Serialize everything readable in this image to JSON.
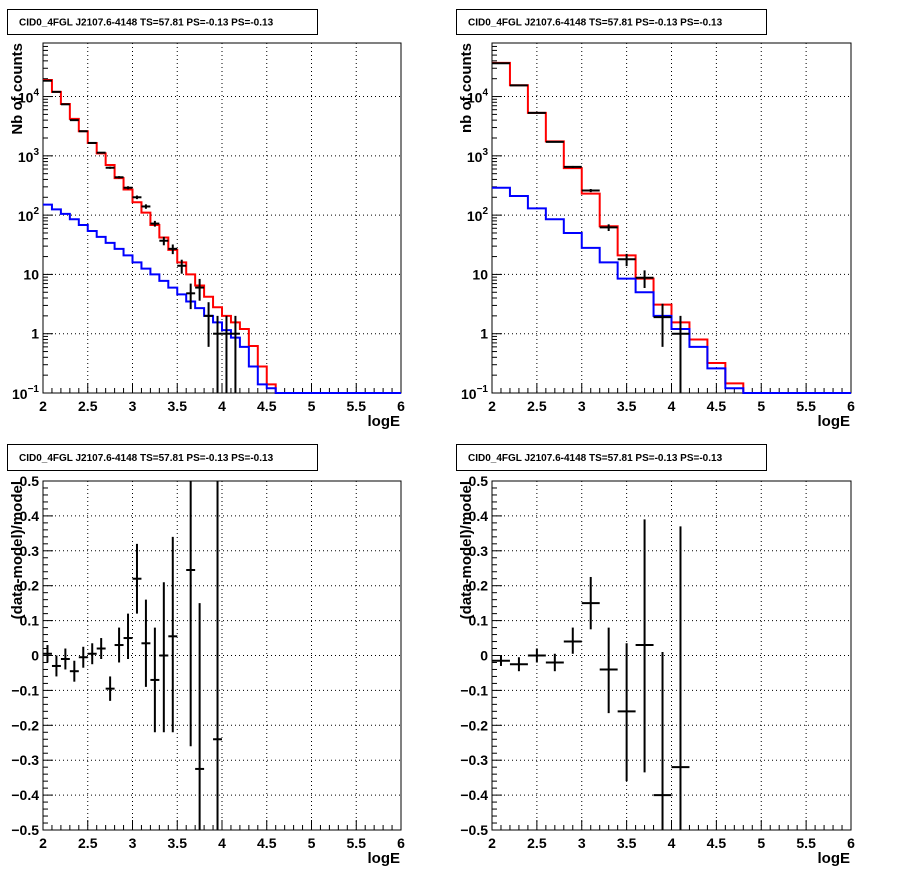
{
  "colors": {
    "data": "#000000",
    "total": "#ff0000",
    "background": "#0000ff",
    "frame": "#000000"
  },
  "chart_data": [
    {
      "type": "histogram",
      "title": "CID0_4FGL J2107.6-4148 TS=57.81 PS=-0.13 PS=-0.13",
      "xlabel": "logE",
      "ylabel": "Nb of counts",
      "xlim": [
        2,
        6
      ],
      "ylim": [
        0.1,
        80000
      ],
      "log_y": true,
      "grid": true,
      "xticks": [
        2,
        2.5,
        3,
        3.5,
        4,
        4.5,
        5,
        5.5,
        6
      ],
      "yticks": [
        {
          "value": 0.1,
          "base": "10",
          "exp": "−1"
        },
        {
          "value": 1,
          "label": "1"
        },
        {
          "value": 10,
          "label": "10"
        },
        {
          "value": 100,
          "base": "10",
          "exp": "2"
        },
        {
          "value": 1000,
          "base": "10",
          "exp": "3"
        },
        {
          "value": 10000,
          "base": "10",
          "exp": "4"
        }
      ],
      "series": [
        {
          "role": "total",
          "color": "#ff0000",
          "step": true,
          "edges": [
            2,
            2.1,
            2.2,
            2.3,
            2.4,
            2.5,
            2.6,
            2.7,
            2.8,
            2.9,
            3,
            3.1,
            3.2,
            3.3,
            3.4,
            3.5,
            3.6,
            3.7,
            3.8,
            3.9,
            4,
            4.1,
            4.2,
            4.3,
            4.4,
            4.5,
            4.6,
            4.7,
            4.8,
            4.9,
            5,
            5.1,
            5.2,
            5.3,
            5.4,
            5.5,
            5.6,
            5.7,
            5.8,
            5.9,
            6
          ],
          "values": [
            19000,
            12000,
            7500,
            4200,
            2600,
            1650,
            1100,
            700,
            420,
            270,
            165,
            110,
            68,
            42,
            26,
            16,
            10,
            6.5,
            4.2,
            2.8,
            2.0,
            1.55,
            1.2,
            0.62,
            0.28,
            0.14,
            0.1,
            0.1,
            0.1,
            0.1,
            0.1,
            0.1,
            0.1,
            0.1,
            0.1,
            0.1,
            0.1,
            0.1,
            0.1,
            0.1
          ]
        },
        {
          "role": "background",
          "color": "#0000ff",
          "step": true,
          "edges": [
            2,
            2.1,
            2.2,
            2.3,
            2.4,
            2.5,
            2.6,
            2.7,
            2.8,
            2.9,
            3,
            3.1,
            3.2,
            3.3,
            3.4,
            3.5,
            3.6,
            3.7,
            3.8,
            3.9,
            4,
            4.1,
            4.2,
            4.3,
            4.4,
            4.5,
            4.6,
            4.7,
            4.8,
            4.9,
            5,
            5.1,
            5.2,
            5.3,
            5.4,
            5.5,
            5.6,
            5.7,
            5.8,
            5.9,
            6
          ],
          "values": [
            150,
            125,
            105,
            85,
            68,
            54,
            43,
            34,
            27,
            21,
            16,
            12.5,
            10,
            7.8,
            6.0,
            4.6,
            3.5,
            2.7,
            2.0,
            1.55,
            1.15,
            0.86,
            0.6,
            0.28,
            0.14,
            0.12,
            0.1,
            0.1,
            0.1,
            0.1,
            0.1,
            0.1,
            0.1,
            0.1,
            0.1,
            0.1,
            0.1,
            0.1,
            0.1,
            0.1
          ]
        },
        {
          "role": "data",
          "color": "#000000",
          "points": [
            {
              "x": 2.05,
              "y": 18500,
              "xerr": 0.05,
              "ylo": 18300,
              "yhi": 18700
            },
            {
              "x": 2.15,
              "y": 12000,
              "xerr": 0.05,
              "ylo": 11850,
              "yhi": 12150
            },
            {
              "x": 2.25,
              "y": 7400,
              "xerr": 0.05,
              "ylo": 7300,
              "yhi": 7500
            },
            {
              "x": 2.35,
              "y": 4000,
              "xerr": 0.05,
              "ylo": 3930,
              "yhi": 4070
            },
            {
              "x": 2.45,
              "y": 2600,
              "xerr": 0.05,
              "ylo": 2550,
              "yhi": 2650
            },
            {
              "x": 2.55,
              "y": 1650,
              "xerr": 0.05,
              "ylo": 1610,
              "yhi": 1690
            },
            {
              "x": 2.65,
              "y": 1130,
              "xerr": 0.05,
              "ylo": 1100,
              "yhi": 1160
            },
            {
              "x": 2.75,
              "y": 630,
              "xerr": 0.05,
              "ylo": 605,
              "yhi": 655
            },
            {
              "x": 2.85,
              "y": 435,
              "xerr": 0.05,
              "ylo": 415,
              "yhi": 455
            },
            {
              "x": 2.95,
              "y": 290,
              "xerr": 0.05,
              "ylo": 273,
              "yhi": 307
            },
            {
              "x": 3.05,
              "y": 200,
              "xerr": 0.05,
              "ylo": 186,
              "yhi": 214
            },
            {
              "x": 3.15,
              "y": 140,
              "xerr": 0.05,
              "ylo": 128,
              "yhi": 152
            },
            {
              "x": 3.25,
              "y": 72,
              "xerr": 0.05,
              "ylo": 64,
              "yhi": 80
            },
            {
              "x": 3.35,
              "y": 37,
              "xerr": 0.05,
              "ylo": 31,
              "yhi": 43
            },
            {
              "x": 3.45,
              "y": 27,
              "xerr": 0.05,
              "ylo": 22,
              "yhi": 32
            },
            {
              "x": 3.55,
              "y": 14,
              "xerr": 0.05,
              "ylo": 10.3,
              "yhi": 17.7
            },
            {
              "x": 3.65,
              "y": 4.8,
              "xerr": 0.05,
              "ylo": 2.6,
              "yhi": 7.0
            },
            {
              "x": 3.75,
              "y": 6.0,
              "xerr": 0.05,
              "ylo": 3.6,
              "yhi": 8.4
            },
            {
              "x": 3.85,
              "y": 2.0,
              "xerr": 0.05,
              "ylo": 0.6,
              "yhi": 3.4
            },
            {
              "x": 3.95,
              "y": 1.0,
              "xerr": 0.05,
              "ylo": 0.1,
              "yhi": 2.0
            },
            {
              "x": 4.05,
              "y": 1.0,
              "xerr": 0.05,
              "ylo": 0.1,
              "yhi": 2.0
            },
            {
              "x": 4.15,
              "y": 1.0,
              "xerr": 0.05,
              "ylo": 0.1,
              "yhi": 2.0
            }
          ]
        }
      ]
    },
    {
      "type": "histogram",
      "title": "CID0_4FGL J2107.6-4148 TS=57.81 PS=-0.13 PS=-0.13",
      "xlabel": "logE",
      "ylabel": "nb of counts",
      "xlim": [
        2,
        6
      ],
      "ylim": [
        0.1,
        80000
      ],
      "log_y": true,
      "grid": true,
      "xticks": [
        2,
        2.5,
        3,
        3.5,
        4,
        4.5,
        5,
        5.5,
        6
      ],
      "yticks": [
        {
          "value": 0.1,
          "base": "10",
          "exp": "−1"
        },
        {
          "value": 1,
          "label": "1"
        },
        {
          "value": 10,
          "label": "10"
        },
        {
          "value": 100,
          "base": "10",
          "exp": "2"
        },
        {
          "value": 1000,
          "base": "10",
          "exp": "3"
        },
        {
          "value": 10000,
          "base": "10",
          "exp": "4"
        }
      ],
      "series": [
        {
          "role": "total",
          "color": "#ff0000",
          "step": true,
          "edges": [
            2,
            2.2,
            2.4,
            2.6,
            2.8,
            3,
            3.2,
            3.4,
            3.6,
            3.8,
            4,
            4.2,
            4.4,
            4.6,
            4.8,
            5,
            5.2,
            5.4,
            5.6,
            5.8,
            6
          ],
          "values": [
            37000,
            15500,
            5300,
            1750,
            620,
            230,
            65,
            21,
            8.5,
            3.1,
            1.55,
            0.8,
            0.32,
            0.145,
            0.1,
            0.1,
            0.1,
            0.1,
            0.1,
            0.1
          ]
        },
        {
          "role": "background",
          "color": "#0000ff",
          "step": true,
          "edges": [
            2,
            2.2,
            2.4,
            2.6,
            2.8,
            3,
            3.2,
            3.4,
            3.6,
            3.8,
            4,
            4.2,
            4.4,
            4.6,
            4.8,
            5,
            5.2,
            5.4,
            5.6,
            5.8,
            6
          ],
          "values": [
            290,
            210,
            130,
            85,
            50,
            28,
            16,
            8.5,
            5.0,
            2.0,
            1.2,
            0.6,
            0.26,
            0.12,
            0.1,
            0.1,
            0.1,
            0.1,
            0.1,
            0.1
          ]
        },
        {
          "role": "data",
          "color": "#000000",
          "points": [
            {
              "x": 2.1,
              "y": 36500,
              "xerr": 0.1,
              "ylo": 36300,
              "yhi": 36700
            },
            {
              "x": 2.3,
              "y": 15400,
              "xerr": 0.1,
              "ylo": 15280,
              "yhi": 15520
            },
            {
              "x": 2.5,
              "y": 5300,
              "xerr": 0.1,
              "ylo": 5230,
              "yhi": 5370
            },
            {
              "x": 2.7,
              "y": 1720,
              "xerr": 0.1,
              "ylo": 1680,
              "yhi": 1760
            },
            {
              "x": 2.9,
              "y": 650,
              "xerr": 0.1,
              "ylo": 625,
              "yhi": 675
            },
            {
              "x": 3.1,
              "y": 260,
              "xerr": 0.1,
              "ylo": 244,
              "yhi": 276
            },
            {
              "x": 3.3,
              "y": 62,
              "xerr": 0.1,
              "ylo": 54,
              "yhi": 70
            },
            {
              "x": 3.5,
              "y": 18,
              "xerr": 0.1,
              "ylo": 13.8,
              "yhi": 22.2
            },
            {
              "x": 3.7,
              "y": 8.8,
              "xerr": 0.1,
              "ylo": 5.9,
              "yhi": 11.7
            },
            {
              "x": 3.9,
              "y": 1.9,
              "xerr": 0.1,
              "ylo": 0.6,
              "yhi": 3.2
            },
            {
              "x": 4.1,
              "y": 1.0,
              "xerr": 0.1,
              "ylo": 0.1,
              "yhi": 2.0
            }
          ]
        }
      ]
    },
    {
      "type": "scatter",
      "title": "CID0_4FGL J2107.6-4148 TS=57.81 PS=-0.13 PS=-0.13",
      "xlabel": "logE",
      "ylabel": "(data-model)/model",
      "xlim": [
        2,
        6
      ],
      "ylim": [
        -0.5,
        0.5
      ],
      "log_y": false,
      "grid": true,
      "xticks": [
        2,
        2.5,
        3,
        3.5,
        4,
        4.5,
        5,
        5.5,
        6
      ],
      "yticks": [
        {
          "value": -0.5,
          "label": "−0.5"
        },
        {
          "value": -0.4,
          "label": "−0.4"
        },
        {
          "value": -0.3,
          "label": "−0.3"
        },
        {
          "value": -0.2,
          "label": "−0.2"
        },
        {
          "value": -0.1,
          "label": "−0.1"
        },
        {
          "value": 0,
          "label": "0"
        },
        {
          "value": 0.1,
          "label": "0.1"
        },
        {
          "value": 0.2,
          "label": "0.2"
        },
        {
          "value": 0.3,
          "label": "0.3"
        },
        {
          "value": 0.4,
          "label": "0.4"
        },
        {
          "value": 0.5,
          "label": "0.5"
        }
      ],
      "series": [
        {
          "role": "data",
          "color": "#000000",
          "points": [
            {
              "x": 2.05,
              "y": 0.005,
              "xerr": 0.05,
              "ylo": -0.02,
              "yhi": 0.03
            },
            {
              "x": 2.15,
              "y": -0.03,
              "xerr": 0.05,
              "ylo": -0.06,
              "yhi": 0.0
            },
            {
              "x": 2.25,
              "y": -0.01,
              "xerr": 0.05,
              "ylo": -0.04,
              "yhi": 0.02
            },
            {
              "x": 2.35,
              "y": -0.045,
              "xerr": 0.05,
              "ylo": -0.075,
              "yhi": -0.015
            },
            {
              "x": 2.45,
              "y": -0.005,
              "xerr": 0.05,
              "ylo": -0.035,
              "yhi": 0.025
            },
            {
              "x": 2.55,
              "y": 0.005,
              "xerr": 0.05,
              "ylo": -0.025,
              "yhi": 0.035
            },
            {
              "x": 2.65,
              "y": 0.02,
              "xerr": 0.05,
              "ylo": -0.01,
              "yhi": 0.05
            },
            {
              "x": 2.75,
              "y": -0.095,
              "xerr": 0.05,
              "ylo": -0.13,
              "yhi": -0.06
            },
            {
              "x": 2.85,
              "y": 0.03,
              "xerr": 0.05,
              "ylo": -0.02,
              "yhi": 0.08
            },
            {
              "x": 2.95,
              "y": 0.05,
              "xerr": 0.05,
              "ylo": -0.01,
              "yhi": 0.12
            },
            {
              "x": 3.05,
              "y": 0.22,
              "xerr": 0.05,
              "ylo": 0.12,
              "yhi": 0.32
            },
            {
              "x": 3.15,
              "y": 0.035,
              "xerr": 0.05,
              "ylo": -0.09,
              "yhi": 0.16
            },
            {
              "x": 3.25,
              "y": -0.07,
              "xerr": 0.05,
              "ylo": -0.22,
              "yhi": 0.08
            },
            {
              "x": 3.35,
              "y": 0.0,
              "xerr": 0.05,
              "ylo": -0.22,
              "yhi": 0.21
            },
            {
              "x": 3.45,
              "y": 0.055,
              "xerr": 0.05,
              "ylo": -0.22,
              "yhi": 0.34
            },
            {
              "x": 3.65,
              "y": 0.245,
              "xerr": 0.05,
              "ylo": -0.26,
              "yhi": 0.5
            },
            {
              "x": 3.75,
              "y": -0.325,
              "xerr": 0.05,
              "ylo": -0.5,
              "yhi": 0.15
            },
            {
              "x": 3.95,
              "y": -0.24,
              "xerr": 0.05,
              "ylo": -0.5,
              "yhi": 0.5
            }
          ]
        }
      ]
    },
    {
      "type": "scatter",
      "title": "CID0_4FGL J2107.6-4148 TS=57.81 PS=-0.13 PS=-0.13",
      "xlabel": "logE",
      "ylabel": "(data-model)/model",
      "xlim": [
        2,
        6
      ],
      "ylim": [
        -0.5,
        0.5
      ],
      "log_y": false,
      "grid": true,
      "xticks": [
        2,
        2.5,
        3,
        3.5,
        4,
        4.5,
        5,
        5.5,
        6
      ],
      "yticks": [
        {
          "value": -0.5,
          "label": "−0.5"
        },
        {
          "value": -0.4,
          "label": "−0.4"
        },
        {
          "value": -0.3,
          "label": "−0.3"
        },
        {
          "value": -0.2,
          "label": "−0.2"
        },
        {
          "value": -0.1,
          "label": "−0.1"
        },
        {
          "value": 0,
          "label": "0"
        },
        {
          "value": 0.1,
          "label": "0.1"
        },
        {
          "value": 0.2,
          "label": "0.2"
        },
        {
          "value": 0.3,
          "label": "0.3"
        },
        {
          "value": 0.4,
          "label": "0.4"
        },
        {
          "value": 0.5,
          "label": "0.5"
        }
      ],
      "series": [
        {
          "role": "data",
          "color": "#000000",
          "points": [
            {
              "x": 2.1,
              "y": -0.015,
              "xerr": 0.1,
              "ylo": -0.03,
              "yhi": 0.0
            },
            {
              "x": 2.3,
              "y": -0.025,
              "xerr": 0.1,
              "ylo": -0.045,
              "yhi": -0.005
            },
            {
              "x": 2.5,
              "y": 0.0,
              "xerr": 0.1,
              "ylo": -0.02,
              "yhi": 0.02
            },
            {
              "x": 2.7,
              "y": -0.02,
              "xerr": 0.1,
              "ylo": -0.045,
              "yhi": 0.005
            },
            {
              "x": 2.9,
              "y": 0.04,
              "xerr": 0.1,
              "ylo": 0.005,
              "yhi": 0.08
            },
            {
              "x": 3.1,
              "y": 0.15,
              "xerr": 0.1,
              "ylo": 0.075,
              "yhi": 0.225
            },
            {
              "x": 3.3,
              "y": -0.04,
              "xerr": 0.1,
              "ylo": -0.165,
              "yhi": 0.08
            },
            {
              "x": 3.5,
              "y": -0.16,
              "xerr": 0.1,
              "ylo": -0.36,
              "yhi": 0.035
            },
            {
              "x": 3.7,
              "y": 0.03,
              "xerr": 0.1,
              "ylo": -0.335,
              "yhi": 0.39
            },
            {
              "x": 3.9,
              "y": -0.4,
              "xerr": 0.1,
              "ylo": -0.5,
              "yhi": 0.01
            },
            {
              "x": 4.1,
              "y": -0.32,
              "xerr": 0.1,
              "ylo": -0.5,
              "yhi": 0.37
            }
          ]
        }
      ]
    }
  ]
}
